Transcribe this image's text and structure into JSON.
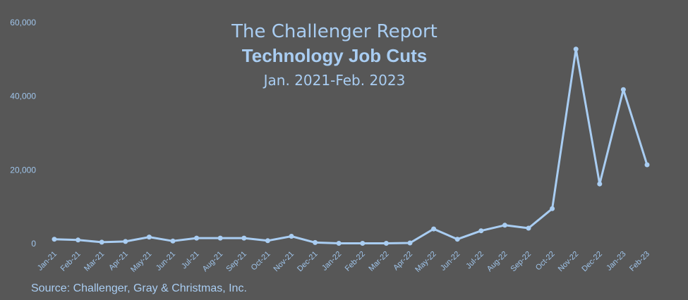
{
  "chart_data": {
    "type": "line",
    "title": "The Challenger Report",
    "subtitle": "Technology Job Cuts",
    "date_range": "Jan. 2021-Feb. 2023",
    "source": "Source: Challenger, Gray & Christmas, Inc.",
    "categories": [
      "Jan-21",
      "Feb-21",
      "Mar-21",
      "Apr-21",
      "May-21",
      "Jun-21",
      "Jul-21",
      "Aug-21",
      "Sep-21",
      "Oct-21",
      "Nov-21",
      "Dec-21",
      "Jan-22",
      "Feb-22",
      "Mar-22",
      "Apr-22",
      "May-22",
      "Jun-22",
      "Jul-22",
      "Aug-22",
      "Sep-22",
      "Oct-22",
      "Nov-22",
      "Dec-22",
      "Jan-23",
      "Feb-23"
    ],
    "series": [
      {
        "values": [
          1200,
          1000,
          400,
          600,
          1800,
          700,
          1500,
          1500,
          1500,
          800,
          2000,
          300,
          100,
          100,
          100,
          200,
          4000,
          1200,
          3500,
          5000,
          4200,
          9500,
          52800,
          16200,
          41800,
          21400
        ]
      }
    ],
    "y_ticks": [
      "0",
      "20,000",
      "40,000",
      "60,000"
    ],
    "ylim": [
      0,
      60000
    ],
    "grid": false,
    "line_color": "#a9cdf2"
  }
}
